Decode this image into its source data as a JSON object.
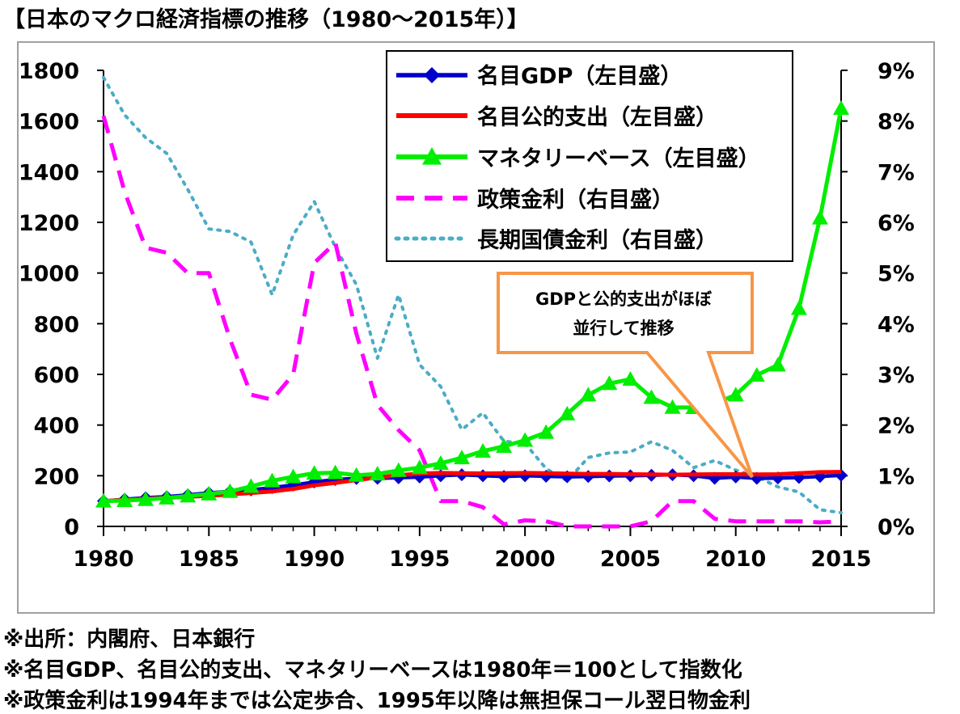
{
  "title": "【日本のマクロ経済指標の推移（1980～2015年）】",
  "notes": [
    "※出所：内閣府、日本銀行",
    "※名目GDP、名目公的支出、マネタリーベースは1980年＝100として指数化",
    "※政策金利は1994年までは公定歩合、1995年以降は無担保コール翌日物金利"
  ],
  "annotation": {
    "line1": "GDPと公的支出がほぼ",
    "line2": "並行して推移"
  },
  "colors": {
    "gdp": "#0000cc",
    "public": "#ff0000",
    "base": "#00ee00",
    "policy": "#ff00ff",
    "longterm": "#4bacc6",
    "callout": "#f79646",
    "frame": "#a0a0a0"
  },
  "chart_data": {
    "type": "line",
    "x": [
      1980,
      1981,
      1982,
      1983,
      1984,
      1985,
      1986,
      1987,
      1988,
      1989,
      1990,
      1991,
      1992,
      1993,
      1994,
      1995,
      1996,
      1997,
      1998,
      1999,
      2000,
      2001,
      2002,
      2003,
      2004,
      2005,
      2006,
      2007,
      2008,
      2009,
      2010,
      2011,
      2012,
      2013,
      2014,
      2015
    ],
    "xticks": [
      "1980",
      "1985",
      "1990",
      "1995",
      "2000",
      "2005",
      "2010",
      "2015"
    ],
    "xlim": [
      1980,
      2015
    ],
    "y_left": {
      "ticks": [
        "0",
        "200",
        "400",
        "600",
        "800",
        "1000",
        "1200",
        "1400",
        "1600",
        "1800"
      ],
      "ylim": [
        0,
        1800
      ]
    },
    "y_right": {
      "ticks": [
        "0%",
        "1%",
        "2%",
        "3%",
        "4%",
        "5%",
        "6%",
        "7%",
        "8%",
        "9%"
      ],
      "ylim": [
        0,
        9
      ]
    },
    "series": [
      {
        "name": "名目GDP（左目盛）",
        "axis": "left",
        "marker": "diamond",
        "values": [
          100,
          107,
          113,
          117,
          124,
          132,
          138,
          144,
          153,
          163,
          175,
          185,
          189,
          190,
          192,
          195,
          200,
          204,
          200,
          197,
          200,
          198,
          196,
          197,
          199,
          200,
          202,
          204,
          200,
          190,
          195,
          190,
          191,
          193,
          197,
          202
        ]
      },
      {
        "name": "名目公的支出（左目盛）",
        "axis": "left",
        "marker": "none",
        "values": [
          100,
          105,
          109,
          113,
          117,
          121,
          126,
          132,
          138,
          148,
          162,
          172,
          183,
          193,
          202,
          208,
          211,
          210,
          209,
          210,
          211,
          210,
          208,
          207,
          207,
          206,
          205,
          204,
          205,
          206,
          206,
          205,
          206,
          210,
          214,
          215
        ]
      },
      {
        "name": "マネタリーベース（左目盛）",
        "axis": "left",
        "marker": "triangle",
        "values": [
          100,
          102,
          106,
          112,
          120,
          128,
          138,
          158,
          180,
          196,
          210,
          212,
          202,
          207,
          221,
          232,
          249,
          271,
          297,
          316,
          340,
          371,
          444,
          519,
          564,
          581,
          509,
          470,
          469,
          485,
          519,
          597,
          637,
          860,
          1217,
          1650
        ]
      },
      {
        "name": "政策金利（右目盛）",
        "axis": "right",
        "marker": "none",
        "style": "dashed",
        "values": [
          8.1,
          6.6,
          5.5,
          5.4,
          5.0,
          5.0,
          3.7,
          2.6,
          2.5,
          3.0,
          5.2,
          5.6,
          3.8,
          2.4,
          1.9,
          1.5,
          0.5,
          0.5,
          0.38,
          0.04,
          0.12,
          0.1,
          0.0,
          0.0,
          0.0,
          0.0,
          0.1,
          0.5,
          0.5,
          0.15,
          0.1,
          0.1,
          0.1,
          0.1,
          0.08,
          0.1
        ]
      },
      {
        "name": "長期国債金利（右目盛）",
        "axis": "right",
        "marker": "none",
        "style": "dotted",
        "values": [
          8.86,
          8.12,
          7.67,
          7.36,
          6.65,
          5.87,
          5.82,
          5.61,
          4.57,
          5.75,
          6.41,
          5.51,
          4.77,
          3.32,
          4.57,
          3.19,
          2.76,
          1.91,
          2.24,
          1.68,
          1.64,
          1.14,
          0.9,
          1.36,
          1.45,
          1.47,
          1.67,
          1.5,
          1.16,
          1.3,
          1.11,
          0.98,
          0.78,
          0.68,
          0.33,
          0.27
        ]
      }
    ]
  }
}
